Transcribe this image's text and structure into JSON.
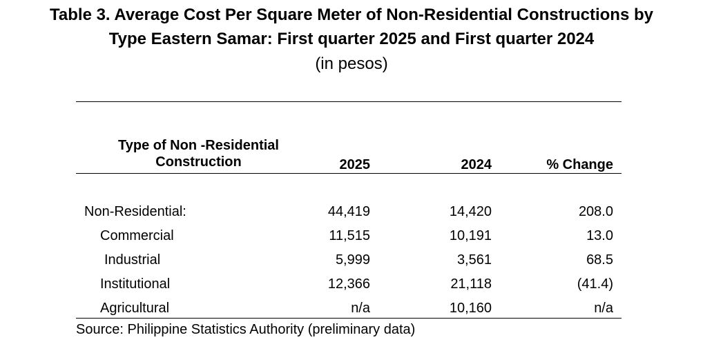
{
  "title": {
    "line1": "Table 3. Average Cost Per Square Meter of Non-Residential Constructions by",
    "line2": "Type Eastern Samar: First quarter 2025 and First quarter 2024",
    "subtitle": "(in pesos)"
  },
  "table": {
    "headers": {
      "type_line1": "Type of Non -Residential",
      "type_line2": "Construction",
      "y2025": "2025",
      "y2024": "2024",
      "pct_change": "% Change"
    },
    "rows": [
      {
        "label": "Non-Residential:",
        "y2025": "44,419",
        "y2024": "14,420",
        "pct_change": "208.0"
      },
      {
        "label": "Commercial",
        "y2025": "11,515",
        "y2024": "10,191",
        "pct_change": "13.0"
      },
      {
        "label": "Industrial",
        "y2025": "5,999",
        "y2024": "3,561",
        "pct_change": "68.5"
      },
      {
        "label": "Institutional",
        "y2025": "12,366",
        "y2024": "21,118",
        "pct_change": "(41.4)"
      },
      {
        "label": "Agricultural",
        "y2025": "n/a",
        "y2024": "10,160",
        "pct_change": "n/a"
      }
    ]
  },
  "source": "Source: Philippine Statistics Authority (preliminary data)"
}
